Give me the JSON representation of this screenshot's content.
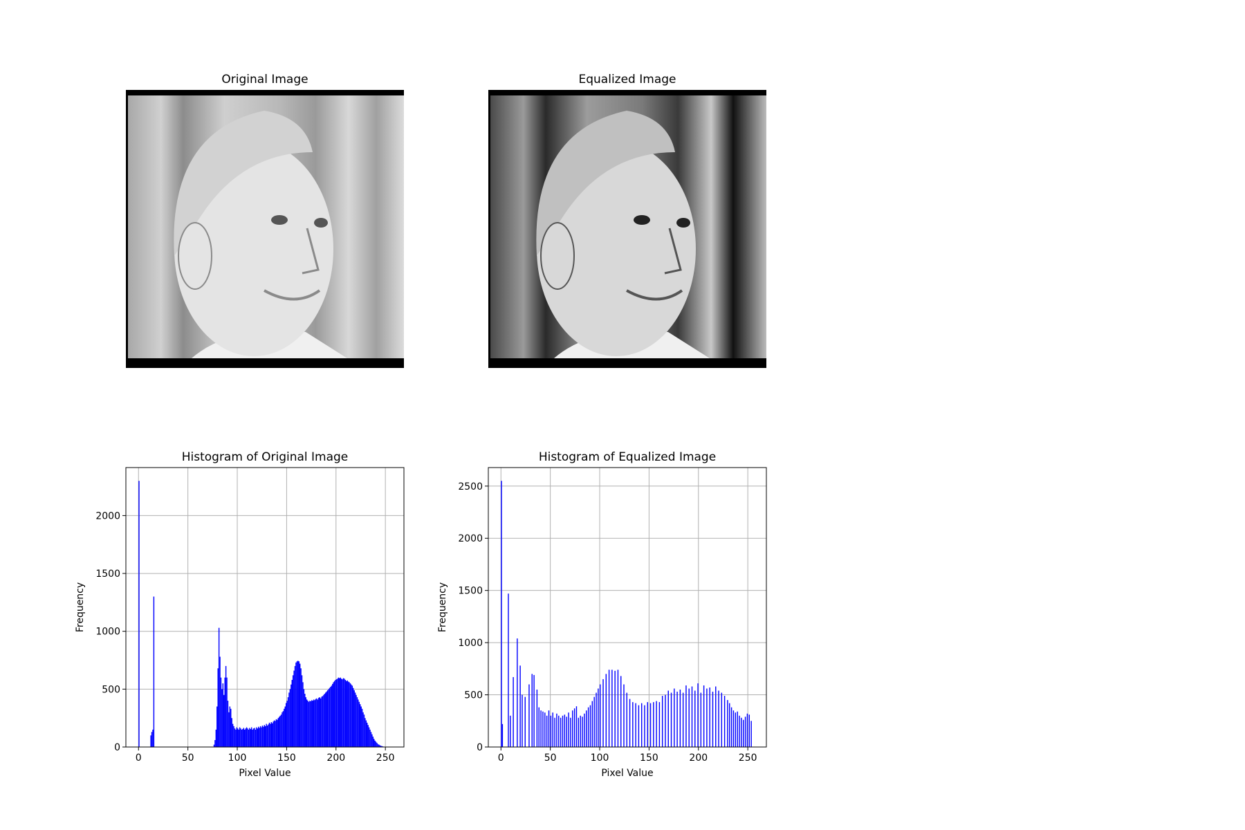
{
  "chart_data": [
    {
      "type": "image",
      "title": "Original Image",
      "tone": "original"
    },
    {
      "type": "image",
      "title": "Equalized Image",
      "tone": "equalized"
    },
    {
      "type": "histogram",
      "title": "Histogram of Original Image",
      "xlabel": "Pixel Value",
      "ylabel": "Frequency",
      "color": "blue",
      "grid": true,
      "xlim": [
        -12.8,
        268.8
      ],
      "ylim": [
        0,
        2415
      ],
      "xticks": [
        0,
        50,
        100,
        150,
        200,
        250
      ],
      "yticks": [
        0,
        500,
        1000,
        1500,
        2000
      ],
      "bins": [
        0,
        1,
        2,
        3,
        4,
        5,
        6,
        7,
        8,
        9,
        10,
        11,
        12,
        13,
        14,
        15,
        16,
        17,
        18,
        19,
        20,
        21,
        22,
        23,
        24,
        25,
        26,
        27,
        28,
        29,
        30,
        31,
        32,
        33,
        34,
        35,
        36,
        37,
        38,
        39,
        40,
        41,
        42,
        43,
        44,
        45,
        46,
        47,
        48,
        49,
        50,
        51,
        52,
        53,
        54,
        55,
        56,
        57,
        58,
        59,
        60,
        61,
        62,
        63,
        64,
        65,
        66,
        67,
        68,
        69,
        70,
        71,
        72,
        73,
        74,
        75,
        76,
        77,
        78,
        79,
        80,
        81,
        82,
        83,
        84,
        85,
        86,
        87,
        88,
        89,
        90,
        91,
        92,
        93,
        94,
        95,
        96,
        97,
        98,
        99,
        100,
        101,
        102,
        103,
        104,
        105,
        106,
        107,
        108,
        109,
        110,
        111,
        112,
        113,
        114,
        115,
        116,
        117,
        118,
        119,
        120,
        121,
        122,
        123,
        124,
        125,
        126,
        127,
        128,
        129,
        130,
        131,
        132,
        133,
        134,
        135,
        136,
        137,
        138,
        139,
        140,
        141,
        142,
        143,
        144,
        145,
        146,
        147,
        148,
        149,
        150,
        151,
        152,
        153,
        154,
        155,
        156,
        157,
        158,
        159,
        160,
        161,
        162,
        163,
        164,
        165,
        166,
        167,
        168,
        169,
        170,
        171,
        172,
        173,
        174,
        175,
        176,
        177,
        178,
        179,
        180,
        181,
        182,
        183,
        184,
        185,
        186,
        187,
        188,
        189,
        190,
        191,
        192,
        193,
        194,
        195,
        196,
        197,
        198,
        199,
        200,
        201,
        202,
        203,
        204,
        205,
        206,
        207,
        208,
        209,
        210,
        211,
        212,
        213,
        214,
        215,
        216,
        217,
        218,
        219,
        220,
        221,
        222,
        223,
        224,
        225,
        226,
        227,
        228,
        229,
        230,
        231,
        232,
        233,
        234,
        235,
        236,
        237,
        238,
        239,
        240,
        241,
        242,
        243,
        244,
        245,
        246,
        247,
        248,
        249,
        250,
        251,
        252,
        253,
        254,
        255,
        256
      ],
      "values": [
        2300,
        0,
        0,
        0,
        0,
        0,
        0,
        0,
        0,
        0,
        0,
        0,
        100,
        130,
        150,
        1300,
        0,
        0,
        0,
        0,
        0,
        0,
        0,
        0,
        0,
        0,
        0,
        0,
        0,
        0,
        0,
        0,
        0,
        0,
        0,
        0,
        0,
        0,
        0,
        0,
        0,
        0,
        0,
        0,
        0,
        0,
        0,
        0,
        0,
        0,
        0,
        0,
        0,
        0,
        0,
        0,
        0,
        0,
        0,
        0,
        0,
        0,
        0,
        0,
        0,
        0,
        0,
        0,
        0,
        0,
        0,
        0,
        0,
        0,
        0,
        0,
        20,
        60,
        150,
        350,
        680,
        1030,
        780,
        600,
        500,
        550,
        450,
        600,
        700,
        600,
        400,
        300,
        350,
        330,
        250,
        200,
        180,
        160,
        150,
        170,
        160,
        150,
        170,
        160,
        150,
        155,
        165,
        150,
        160,
        170,
        160,
        150,
        165,
        155,
        170,
        150,
        160,
        165,
        150,
        170,
        160,
        175,
        165,
        180,
        170,
        185,
        175,
        190,
        180,
        200,
        185,
        195,
        210,
        200,
        215,
        205,
        220,
        230,
        225,
        240,
        235,
        250,
        260,
        270,
        280,
        300,
        310,
        330,
        350,
        380,
        400,
        430,
        470,
        500,
        540,
        580,
        620,
        660,
        700,
        730,
        740,
        745,
        740,
        720,
        680,
        620,
        560,
        500,
        460,
        430,
        410,
        400,
        390,
        400,
        395,
        405,
        400,
        410,
        405,
        415,
        420,
        410,
        425,
        430,
        420,
        435,
        440,
        450,
        460,
        470,
        480,
        490,
        500,
        510,
        520,
        530,
        545,
        560,
        570,
        580,
        585,
        590,
        600,
        595,
        600,
        590,
        585,
        595,
        590,
        580,
        570,
        575,
        565,
        560,
        550,
        540,
        530,
        510,
        490,
        470,
        450,
        430,
        410,
        390,
        370,
        350,
        330,
        300,
        280,
        250,
        230,
        210,
        190,
        170,
        150,
        130,
        110,
        90,
        70,
        55,
        45,
        35,
        25,
        20,
        15,
        10,
        8,
        5,
        3,
        2,
        1,
        0,
        0,
        0,
        0,
        0
      ]
    },
    {
      "type": "histogram",
      "title": "Histogram of Equalized Image",
      "xlabel": "Pixel Value",
      "ylabel": "Frequency",
      "color": "blue",
      "grid": true,
      "xlim": [
        -12.8,
        268.8
      ],
      "ylim": [
        0,
        2677.5
      ],
      "xticks": [
        0,
        50,
        100,
        150,
        200,
        250
      ],
      "yticks": [
        0,
        500,
        1000,
        1500,
        2000,
        2500
      ],
      "bins": [
        0,
        1,
        2,
        3,
        4,
        5,
        6,
        7,
        8,
        9,
        10,
        11,
        12,
        13,
        14,
        15,
        16,
        17,
        18,
        19,
        20,
        21,
        22,
        23,
        24,
        25,
        26,
        27,
        28,
        29,
        30,
        31,
        32,
        33,
        34,
        35,
        36,
        37,
        38,
        39,
        40,
        41,
        42,
        43,
        44,
        45,
        46,
        47,
        48,
        49,
        50,
        51,
        52,
        53,
        54,
        55,
        56,
        57,
        58,
        59,
        60,
        61,
        62,
        63,
        64,
        65,
        66,
        67,
        68,
        69,
        70,
        71,
        72,
        73,
        74,
        75,
        76,
        77,
        78,
        79,
        80,
        81,
        82,
        83,
        84,
        85,
        86,
        87,
        88,
        89,
        90,
        91,
        92,
        93,
        94,
        95,
        96,
        97,
        98,
        99,
        100,
        101,
        102,
        103,
        104,
        105,
        106,
        107,
        108,
        109,
        110,
        111,
        112,
        113,
        114,
        115,
        116,
        117,
        118,
        119,
        120,
        121,
        122,
        123,
        124,
        125,
        126,
        127,
        128,
        129,
        130,
        131,
        132,
        133,
        134,
        135,
        136,
        137,
        138,
        139,
        140,
        141,
        142,
        143,
        144,
        145,
        146,
        147,
        148,
        149,
        150,
        151,
        152,
        153,
        154,
        155,
        156,
        157,
        158,
        159,
        160,
        161,
        162,
        163,
        164,
        165,
        166,
        167,
        168,
        169,
        170,
        171,
        172,
        173,
        174,
        175,
        176,
        177,
        178,
        179,
        180,
        181,
        182,
        183,
        184,
        185,
        186,
        187,
        188,
        189,
        190,
        191,
        192,
        193,
        194,
        195,
        196,
        197,
        198,
        199,
        200,
        201,
        202,
        203,
        204,
        205,
        206,
        207,
        208,
        209,
        210,
        211,
        212,
        213,
        214,
        215,
        216,
        217,
        218,
        219,
        220,
        221,
        222,
        223,
        224,
        225,
        226,
        227,
        228,
        229,
        230,
        231,
        232,
        233,
        234,
        235,
        236,
        237,
        238,
        239,
        240,
        241,
        242,
        243,
        244,
        245,
        246,
        247,
        248,
        249,
        250,
        251,
        252,
        253,
        254,
        255,
        256
      ],
      "values": [
        2550,
        220,
        0,
        0,
        0,
        0,
        0,
        1470,
        0,
        300,
        0,
        0,
        670,
        0,
        0,
        0,
        1040,
        0,
        0,
        780,
        0,
        500,
        0,
        0,
        480,
        0,
        0,
        0,
        600,
        0,
        0,
        700,
        0,
        690,
        0,
        0,
        550,
        0,
        380,
        0,
        350,
        0,
        340,
        0,
        330,
        0,
        300,
        0,
        350,
        0,
        300,
        0,
        330,
        0,
        280,
        0,
        320,
        0,
        300,
        0,
        280,
        0,
        300,
        0,
        310,
        0,
        290,
        0,
        330,
        0,
        280,
        0,
        350,
        0,
        370,
        0,
        390,
        0,
        280,
        0,
        300,
        0,
        290,
        0,
        320,
        0,
        350,
        0,
        380,
        0,
        400,
        0,
        440,
        0,
        480,
        0,
        520,
        0,
        560,
        0,
        600,
        0,
        0,
        650,
        0,
        0,
        700,
        0,
        0,
        740,
        0,
        0,
        740,
        0,
        0,
        730,
        0,
        0,
        740,
        0,
        0,
        680,
        0,
        0,
        600,
        0,
        0,
        520,
        0,
        0,
        460,
        0,
        0,
        430,
        0,
        0,
        420,
        0,
        0,
        400,
        0,
        0,
        420,
        0,
        0,
        400,
        0,
        0,
        430,
        0,
        0,
        420,
        0,
        0,
        430,
        0,
        0,
        440,
        0,
        0,
        430,
        0,
        0,
        490,
        0,
        0,
        500,
        0,
        0,
        540,
        0,
        0,
        520,
        0,
        0,
        560,
        0,
        0,
        530,
        0,
        0,
        550,
        0,
        0,
        520,
        0,
        0,
        590,
        0,
        0,
        560,
        0,
        0,
        580,
        0,
        0,
        540,
        0,
        0,
        610,
        0,
        0,
        520,
        0,
        0,
        590,
        0,
        0,
        560,
        0,
        0,
        570,
        0,
        0,
        530,
        0,
        0,
        580,
        0,
        0,
        540,
        0,
        0,
        520,
        0,
        0,
        490,
        0,
        0,
        450,
        0,
        420,
        0,
        380,
        0,
        350,
        0,
        330,
        0,
        340,
        0,
        300,
        0,
        280,
        0,
        260,
        0,
        290,
        0,
        320,
        0,
        310,
        0,
        250,
        0,
        0
      ]
    }
  ]
}
